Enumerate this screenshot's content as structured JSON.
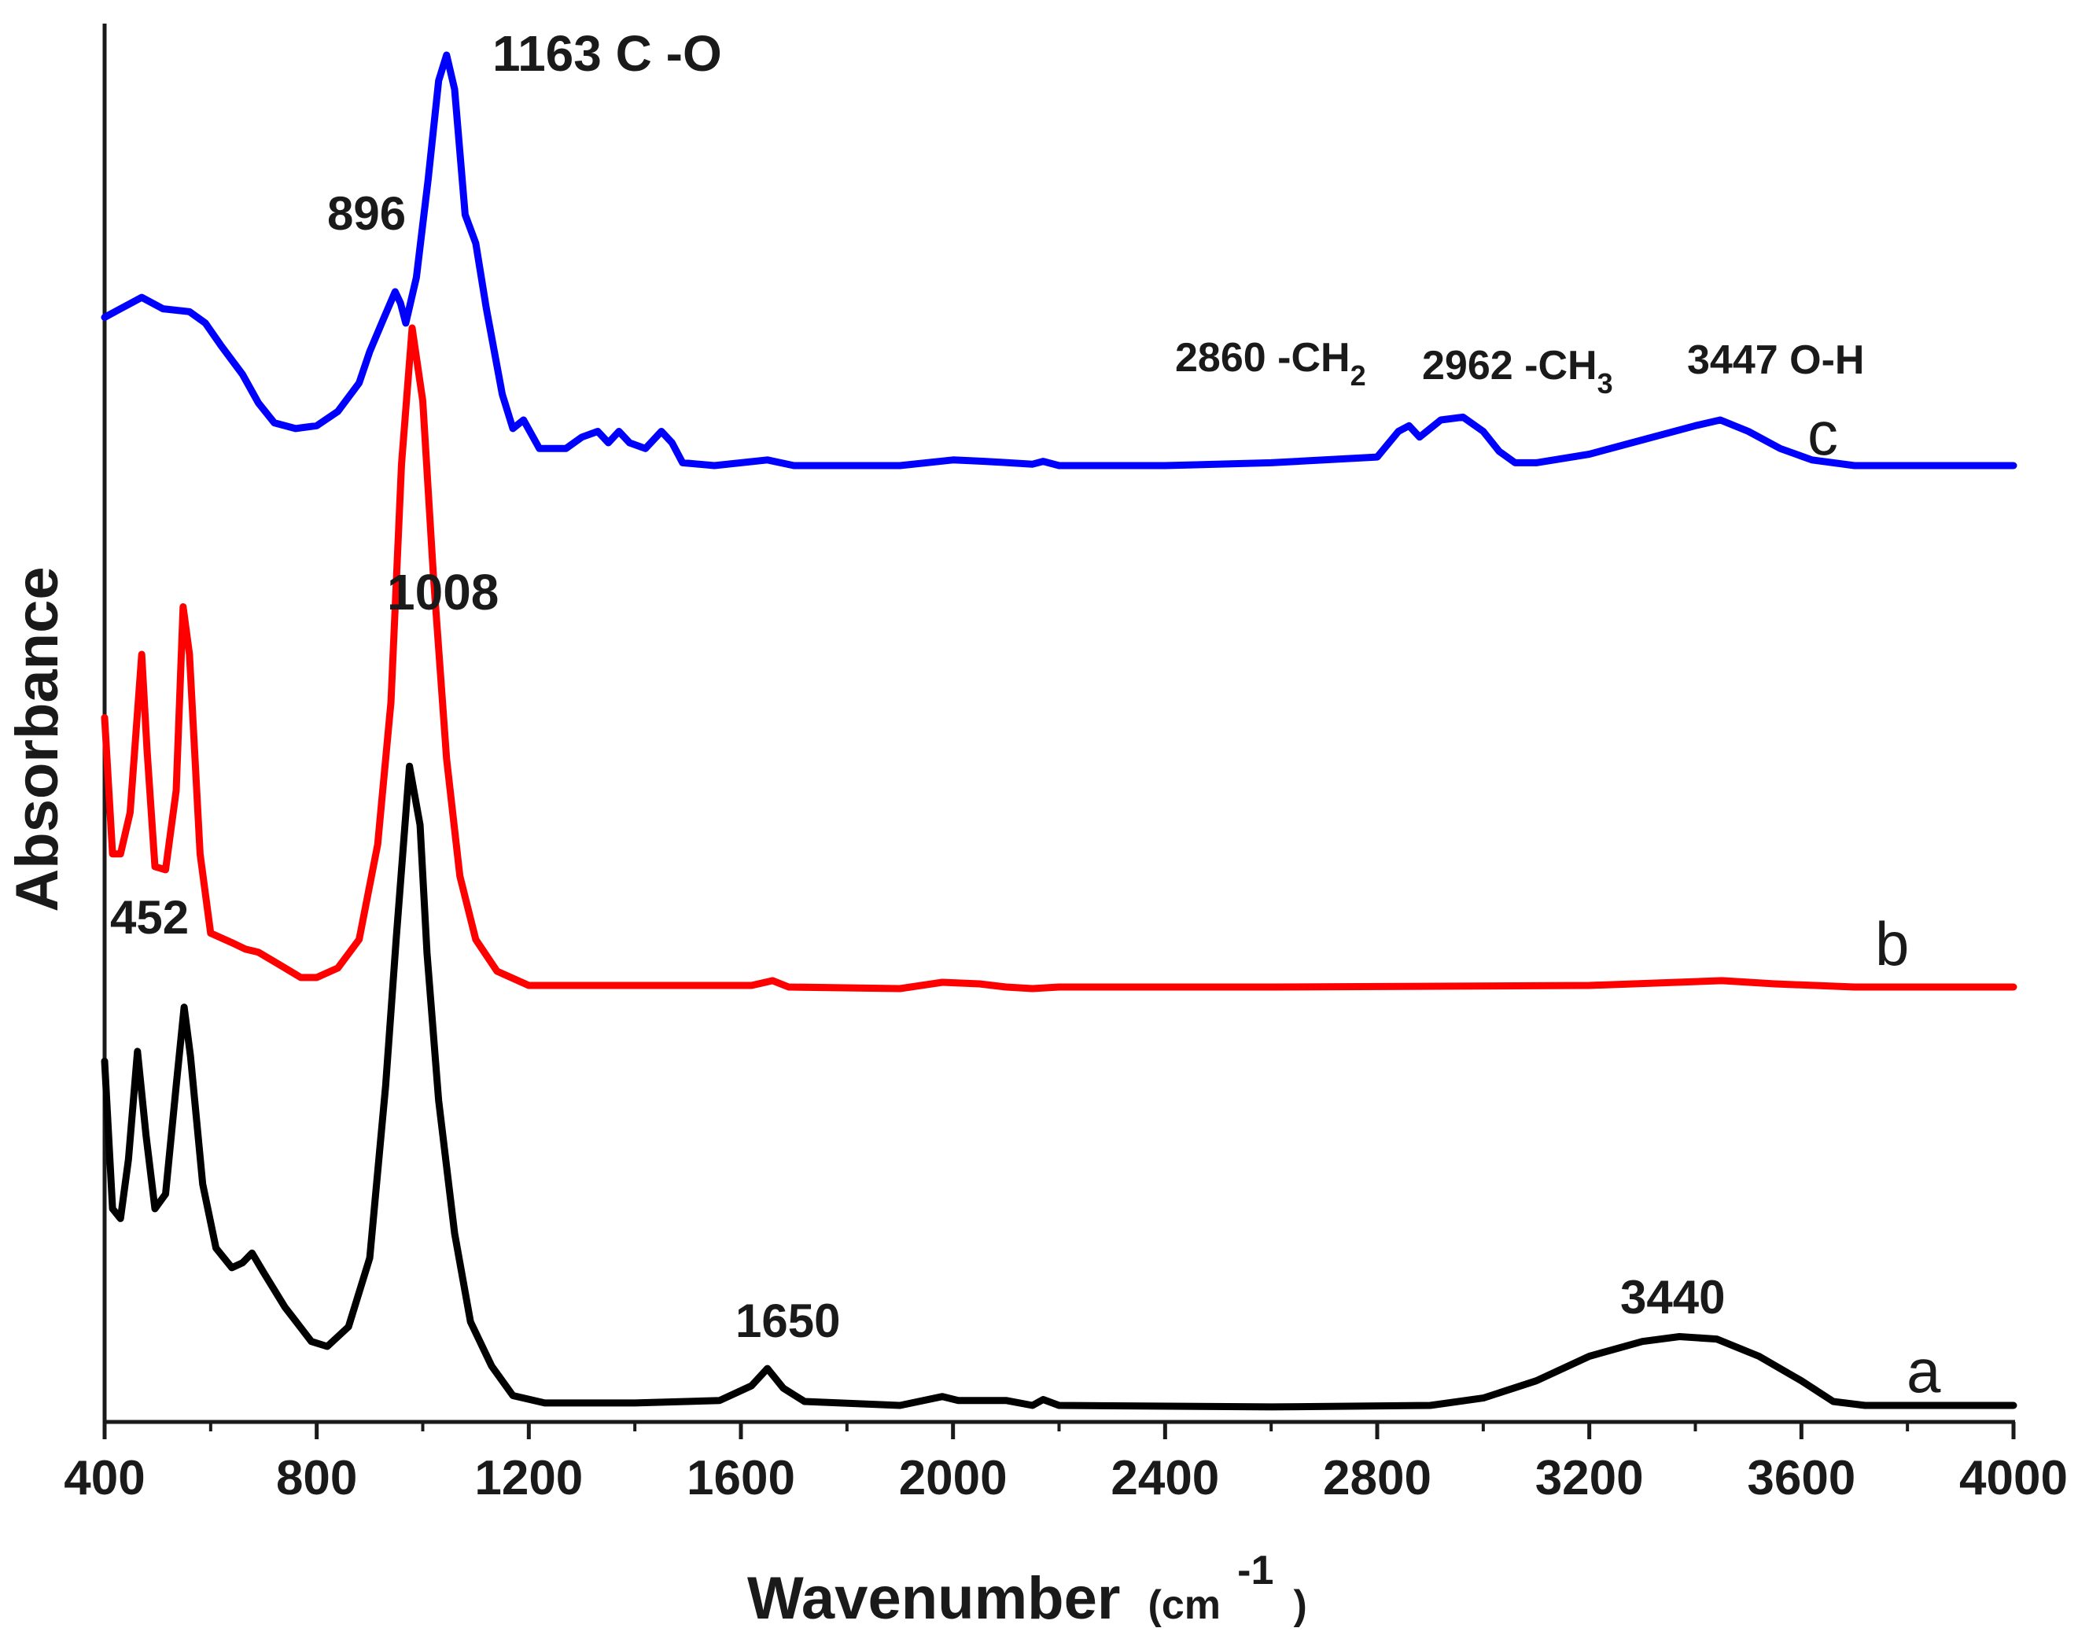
{
  "chart_data": {
    "type": "line",
    "title": "",
    "xlabel": "Wavenumber (cm-1)",
    "xlabel_parts": {
      "main": "Wavenumber",
      "open": "(cm",
      "sup": "-1",
      "close": ")"
    },
    "ylabel": "Absorbance",
    "xlim": [
      400,
      4000
    ],
    "xticks": [
      "400",
      "800",
      "1200",
      "1600",
      "2000",
      "2400",
      "2800",
      "3200",
      "3600",
      "4000"
    ],
    "yticks": [],
    "grid": false,
    "legend": "none",
    "series": [
      {
        "name": "a",
        "label": "a",
        "color": "#000000",
        "points": [
          [
            400,
            0.7
          ],
          [
            415,
            0.4
          ],
          [
            430,
            0.38
          ],
          [
            445,
            0.5
          ],
          [
            462,
            0.72
          ],
          [
            478,
            0.55
          ],
          [
            495,
            0.4
          ],
          [
            515,
            0.43
          ],
          [
            535,
            0.65
          ],
          [
            550,
            0.81
          ],
          [
            562,
            0.71
          ],
          [
            585,
            0.45
          ],
          [
            610,
            0.32
          ],
          [
            640,
            0.28
          ],
          [
            660,
            0.29
          ],
          [
            678,
            0.31
          ],
          [
            700,
            0.27
          ],
          [
            740,
            0.2
          ],
          [
            790,
            0.13
          ],
          [
            820,
            0.12
          ],
          [
            860,
            0.16
          ],
          [
            900,
            0.3
          ],
          [
            930,
            0.65
          ],
          [
            950,
            0.95
          ],
          [
            975,
            1.3
          ],
          [
            995,
            1.18
          ],
          [
            1008,
            0.92
          ],
          [
            1030,
            0.62
          ],
          [
            1060,
            0.35
          ],
          [
            1090,
            0.17
          ],
          [
            1130,
            0.08
          ],
          [
            1170,
            0.02
          ],
          [
            1230,
            0.005
          ],
          [
            1400,
            0.005
          ],
          [
            1560,
            0.01
          ],
          [
            1620,
            0.04
          ],
          [
            1650,
            0.075
          ],
          [
            1680,
            0.035
          ],
          [
            1720,
            0.008
          ],
          [
            1900,
            0.0
          ],
          [
            1980,
            0.018
          ],
          [
            2010,
            0.01
          ],
          [
            2100,
            0.01
          ],
          [
            2150,
            0.0
          ],
          [
            2170,
            0.012
          ],
          [
            2200,
            0.0
          ],
          [
            2600,
            -0.003
          ],
          [
            2900,
            0.0
          ],
          [
            3000,
            0.015
          ],
          [
            3100,
            0.05
          ],
          [
            3200,
            0.1
          ],
          [
            3300,
            0.13
          ],
          [
            3370,
            0.14
          ],
          [
            3440,
            0.135
          ],
          [
            3520,
            0.1
          ],
          [
            3600,
            0.05
          ],
          [
            3660,
            0.008
          ],
          [
            3720,
            0.0
          ],
          [
            4000,
            0.0
          ]
        ]
      },
      {
        "name": "b",
        "label": "b",
        "color": "#ff0000",
        "points": [
          [
            400,
            0.85
          ],
          [
            415,
            0.42
          ],
          [
            430,
            0.42
          ],
          [
            448,
            0.55
          ],
          [
            470,
            1.05
          ],
          [
            480,
            0.75
          ],
          [
            495,
            0.38
          ],
          [
            515,
            0.37
          ],
          [
            535,
            0.62
          ],
          [
            548,
            1.2
          ],
          [
            560,
            1.05
          ],
          [
            580,
            0.42
          ],
          [
            600,
            0.17
          ],
          [
            640,
            0.14
          ],
          [
            665,
            0.12
          ],
          [
            690,
            0.11
          ],
          [
            730,
            0.07
          ],
          [
            770,
            0.03
          ],
          [
            800,
            0.03
          ],
          [
            840,
            0.06
          ],
          [
            880,
            0.15
          ],
          [
            915,
            0.45
          ],
          [
            940,
            0.9
          ],
          [
            960,
            1.65
          ],
          [
            980,
            2.08
          ],
          [
            1000,
            1.85
          ],
          [
            1020,
            1.3
          ],
          [
            1045,
            0.72
          ],
          [
            1070,
            0.35
          ],
          [
            1100,
            0.15
          ],
          [
            1140,
            0.05
          ],
          [
            1200,
            0.005
          ],
          [
            1400,
            0.005
          ],
          [
            1620,
            0.005
          ],
          [
            1660,
            0.02
          ],
          [
            1690,
            0.0
          ],
          [
            1900,
            -0.005
          ],
          [
            1980,
            0.015
          ],
          [
            2050,
            0.01
          ],
          [
            2100,
            0.0
          ],
          [
            2150,
            -0.005
          ],
          [
            2200,
            0.0
          ],
          [
            2600,
            0.0
          ],
          [
            3200,
            0.005
          ],
          [
            3450,
            0.02
          ],
          [
            3550,
            0.01
          ],
          [
            3700,
            0.0
          ],
          [
            4000,
            0.0
          ]
        ]
      },
      {
        "name": "c",
        "label": "c",
        "color": "#0000ff",
        "points": [
          [
            400,
            0.52
          ],
          [
            430,
            0.55
          ],
          [
            470,
            0.59
          ],
          [
            510,
            0.55
          ],
          [
            560,
            0.54
          ],
          [
            590,
            0.5
          ],
          [
            620,
            0.42
          ],
          [
            660,
            0.32
          ],
          [
            690,
            0.22
          ],
          [
            720,
            0.15
          ],
          [
            760,
            0.13
          ],
          [
            800,
            0.14
          ],
          [
            840,
            0.19
          ],
          [
            880,
            0.29
          ],
          [
            900,
            0.4
          ],
          [
            925,
            0.51
          ],
          [
            948,
            0.61
          ],
          [
            958,
            0.57
          ],
          [
            968,
            0.5
          ],
          [
            988,
            0.66
          ],
          [
            1010,
            1.0
          ],
          [
            1030,
            1.35
          ],
          [
            1045,
            1.44
          ],
          [
            1060,
            1.32
          ],
          [
            1080,
            0.88
          ],
          [
            1100,
            0.78
          ],
          [
            1120,
            0.55
          ],
          [
            1150,
            0.25
          ],
          [
            1170,
            0.13
          ],
          [
            1190,
            0.16
          ],
          [
            1220,
            0.06
          ],
          [
            1270,
            0.06
          ],
          [
            1300,
            0.1
          ],
          [
            1330,
            0.12
          ],
          [
            1350,
            0.08
          ],
          [
            1370,
            0.12
          ],
          [
            1390,
            0.08
          ],
          [
            1420,
            0.06
          ],
          [
            1450,
            0.12
          ],
          [
            1470,
            0.08
          ],
          [
            1490,
            0.01
          ],
          [
            1550,
            0.0
          ],
          [
            1650,
            0.02
          ],
          [
            1700,
            0.0
          ],
          [
            1900,
            0.0
          ],
          [
            2000,
            0.02
          ],
          [
            2060,
            0.015
          ],
          [
            2150,
            0.005
          ],
          [
            2170,
            0.015
          ],
          [
            2200,
            0.0
          ],
          [
            2400,
            0.0
          ],
          [
            2600,
            0.01
          ],
          [
            2800,
            0.03
          ],
          [
            2840,
            0.12
          ],
          [
            2860,
            0.14
          ],
          [
            2880,
            0.1
          ],
          [
            2920,
            0.16
          ],
          [
            2962,
            0.17
          ],
          [
            3000,
            0.12
          ],
          [
            3030,
            0.05
          ],
          [
            3060,
            0.01
          ],
          [
            3100,
            0.01
          ],
          [
            3200,
            0.04
          ],
          [
            3300,
            0.09
          ],
          [
            3400,
            0.14
          ],
          [
            3447,
            0.16
          ],
          [
            3500,
            0.12
          ],
          [
            3560,
            0.06
          ],
          [
            3620,
            0.02
          ],
          [
            3700,
            0.0
          ],
          [
            4000,
            0.0
          ]
        ]
      }
    ],
    "annotations": [
      {
        "id": "452",
        "text": "452"
      },
      {
        "id": "896",
        "text": "896"
      },
      {
        "id": "1008",
        "text": "1008"
      },
      {
        "id": "1163",
        "text": "1163 C -O"
      },
      {
        "id": "1650",
        "text": "1650"
      },
      {
        "id": "3440",
        "text": "3440"
      },
      {
        "id": "2860",
        "text": "2860 -CH",
        "sub": "2"
      },
      {
        "id": "2962",
        "text": "2962 -CH",
        "sub": "3"
      },
      {
        "id": "3447",
        "text": "3447 O-H"
      }
    ]
  }
}
